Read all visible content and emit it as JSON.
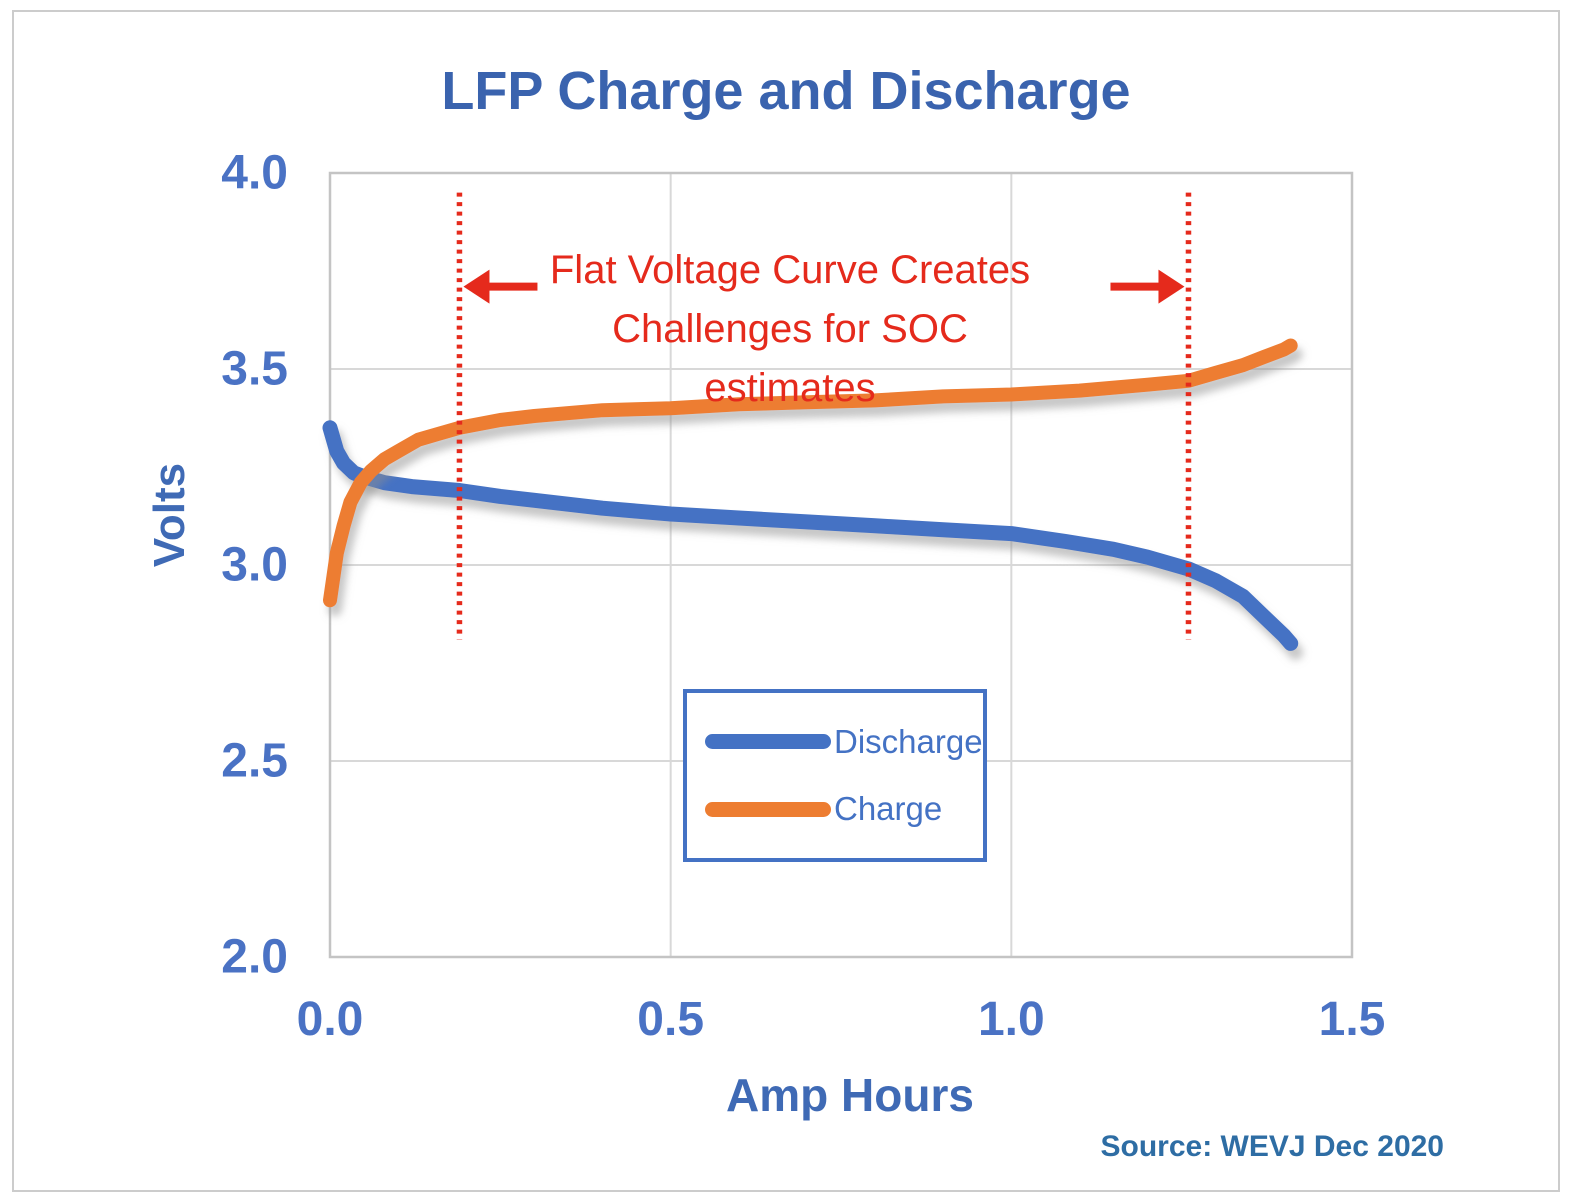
{
  "page": {
    "title": "LFP Charge and Discharge",
    "source": "Source: WEVJ Dec 2020"
  },
  "colors": {
    "discharge_blue": "#4472C4",
    "charge_orange": "#ED7D31",
    "annotation_red": "#E52A1C",
    "text_blue": "#4472C4",
    "title_blue": "#3A63AE",
    "source_blue": "#2E6DA4",
    "grid": "#D8D8D8",
    "plot_border": "#C4C4C4"
  },
  "chart_data": {
    "type": "line",
    "title": "LFP Charge and Discharge",
    "xlabel": "Amp Hours",
    "ylabel": "Volts",
    "xlim": [
      0,
      1.5
    ],
    "ylim": [
      2.0,
      4.0
    ],
    "grid": true,
    "x_ticks": [
      "0.0",
      "0.5",
      "1.0",
      "1.5"
    ],
    "x_tick_values": [
      0,
      0.5,
      1.0,
      1.5
    ],
    "y_ticks": [
      "4.0",
      "3.5",
      "3.0",
      "2.5",
      "2.0"
    ],
    "y_tick_values": [
      4.0,
      3.5,
      3.0,
      2.5,
      2.0
    ],
    "legend": {
      "position": "lower-center",
      "entries": [
        {
          "label": "Discharge",
          "color": "#4472C4"
        },
        {
          "label": "Charge",
          "color": "#ED7D31"
        }
      ]
    },
    "series": [
      {
        "name": "Discharge",
        "color": "#4472C4",
        "points": [
          [
            0.0,
            3.35
          ],
          [
            0.005,
            3.32
          ],
          [
            0.01,
            3.29
          ],
          [
            0.02,
            3.26
          ],
          [
            0.035,
            3.235
          ],
          [
            0.05,
            3.225
          ],
          [
            0.08,
            3.21
          ],
          [
            0.12,
            3.2
          ],
          [
            0.19,
            3.19
          ],
          [
            0.25,
            3.175
          ],
          [
            0.3,
            3.165
          ],
          [
            0.4,
            3.145
          ],
          [
            0.5,
            3.13
          ],
          [
            0.6,
            3.12
          ],
          [
            0.7,
            3.11
          ],
          [
            0.8,
            3.1
          ],
          [
            0.9,
            3.09
          ],
          [
            1.0,
            3.08
          ],
          [
            1.08,
            3.06
          ],
          [
            1.15,
            3.04
          ],
          [
            1.2,
            3.02
          ],
          [
            1.26,
            2.99
          ],
          [
            1.3,
            2.96
          ],
          [
            1.34,
            2.92
          ],
          [
            1.37,
            2.87
          ],
          [
            1.4,
            2.82
          ],
          [
            1.41,
            2.8
          ]
        ]
      },
      {
        "name": "Charge",
        "color": "#ED7D31",
        "points": [
          [
            0.0,
            2.91
          ],
          [
            0.005,
            2.97
          ],
          [
            0.01,
            3.03
          ],
          [
            0.02,
            3.1
          ],
          [
            0.03,
            3.16
          ],
          [
            0.045,
            3.21
          ],
          [
            0.06,
            3.24
          ],
          [
            0.08,
            3.27
          ],
          [
            0.1,
            3.29
          ],
          [
            0.13,
            3.32
          ],
          [
            0.16,
            3.335
          ],
          [
            0.19,
            3.35
          ],
          [
            0.25,
            3.37
          ],
          [
            0.3,
            3.38
          ],
          [
            0.4,
            3.395
          ],
          [
            0.5,
            3.4
          ],
          [
            0.6,
            3.41
          ],
          [
            0.7,
            3.415
          ],
          [
            0.8,
            3.42
          ],
          [
            0.9,
            3.43
          ],
          [
            1.0,
            3.435
          ],
          [
            1.1,
            3.445
          ],
          [
            1.2,
            3.46
          ],
          [
            1.26,
            3.47
          ],
          [
            1.3,
            3.49
          ],
          [
            1.34,
            3.51
          ],
          [
            1.37,
            3.53
          ],
          [
            1.4,
            3.55
          ],
          [
            1.41,
            3.56
          ]
        ]
      }
    ],
    "annotation": {
      "lines": [
        "Flat Voltage Curve Creates",
        "Challenges for SOC",
        "estimates"
      ],
      "color": "#E52A1C",
      "marker_x": [
        0.19,
        1.26
      ],
      "marker_y_range": [
        2.81,
        3.95
      ],
      "arrow_y": 3.71
    }
  }
}
